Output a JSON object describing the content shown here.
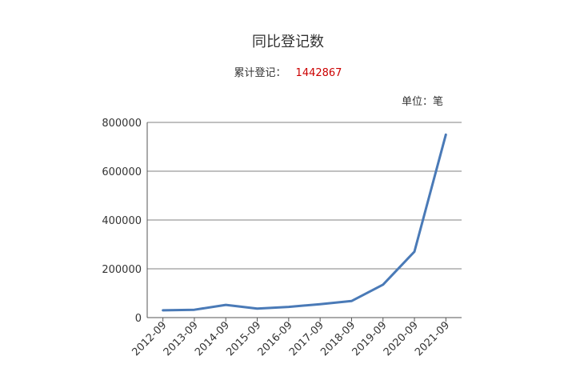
{
  "chart_data": {
    "type": "line",
    "title": "同比登记数",
    "summary_label": "累计登记：",
    "summary_value": "1442867",
    "unit_label": "单位：笔",
    "categories": [
      "2012-09",
      "2013-09",
      "2014-09",
      "2015-09",
      "2016-09",
      "2017-09",
      "2018-09",
      "2019-09",
      "2020-09",
      "2021-09"
    ],
    "series": [
      {
        "values": [
          30000,
          32000,
          52000,
          37000,
          44000,
          55000,
          68000,
          135000,
          270000,
          750000
        ]
      }
    ],
    "ylim": [
      0,
      800000
    ],
    "yticks": [
      "0",
      "200000",
      "400000",
      "600000",
      "800000"
    ],
    "grid": true,
    "colors": {
      "line": "#4a7ab7",
      "grid": "#808080",
      "axis": "#555555"
    }
  }
}
